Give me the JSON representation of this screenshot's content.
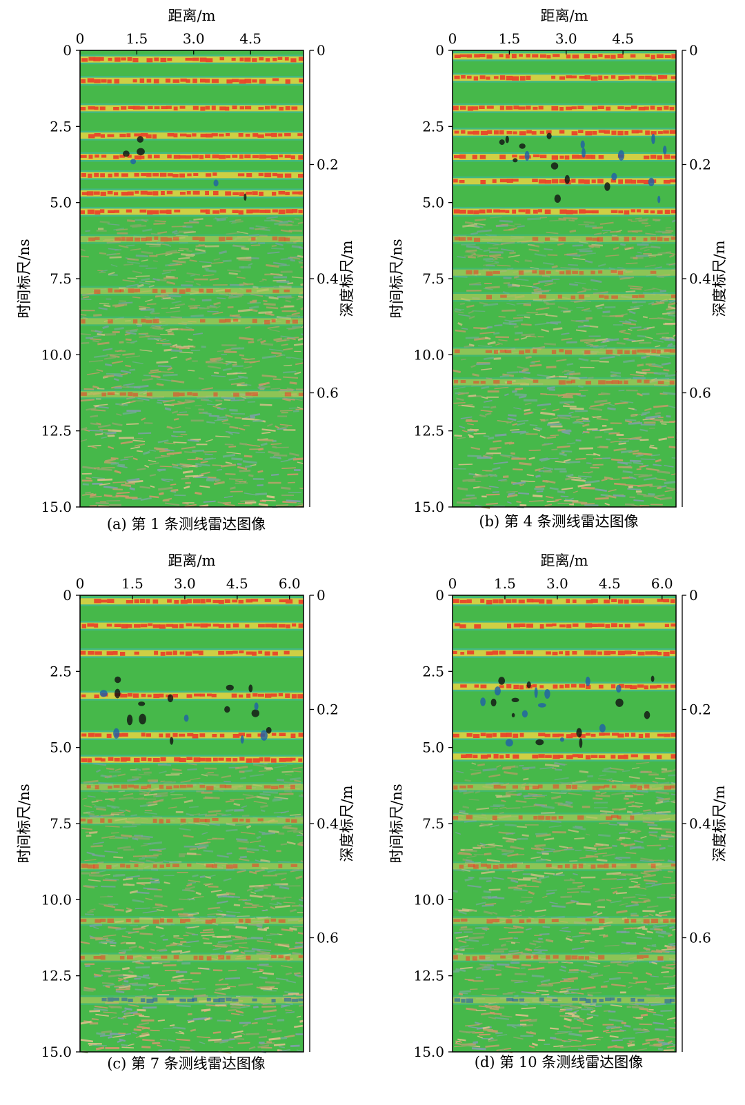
{
  "figure": {
    "panels": [
      {
        "caption_label": "(a)",
        "caption_text": "第 1 条测线雷达图像"
      },
      {
        "caption_label": "(b)",
        "caption_text": "第 4 条测线雷达图像"
      },
      {
        "caption_label": "(c)",
        "caption_text": "第 7 条测线雷达图像"
      },
      {
        "caption_label": "(d)",
        "caption_text": "第 10 条测线雷达图像"
      }
    ]
  },
  "chart_data": [
    {
      "type": "heatmap",
      "title": "(a) 第 1 条测线雷达图像",
      "xlabel": "距离/m",
      "ylabel": "时间标尺/ns",
      "y2label": "深度标尺/m",
      "x_ticks": [
        "0",
        "1.5",
        "3.0",
        "4.5"
      ],
      "y_ticks": [
        "0",
        "2.5",
        "5.0",
        "7.5",
        "10.0",
        "12.5",
        "15.0"
      ],
      "y2_ticks": [
        "0",
        "0.2",
        "0.4",
        "0.6"
      ],
      "xlim": [
        0,
        5.9
      ],
      "ylim": [
        0,
        15
      ],
      "y2lim": [
        0,
        0.8
      ],
      "colors": {
        "green": "#46b84a",
        "red": "#e8452a",
        "yellow": "#e8d23a",
        "cyan": "#3fb8b0",
        "blue": "#1f5fa8"
      },
      "reflectors": [
        {
          "time_ns": 0.3,
          "color": "red"
        },
        {
          "time_ns": 1.0,
          "color": "red"
        },
        {
          "time_ns": 1.9,
          "color": "red"
        },
        {
          "time_ns": 2.8,
          "color": "red"
        },
        {
          "time_ns": 3.5,
          "color": "red"
        },
        {
          "time_ns": 4.1,
          "color": "red"
        },
        {
          "time_ns": 4.7,
          "color": "red"
        },
        {
          "time_ns": 5.3,
          "color": "red"
        },
        {
          "time_ns": 6.2,
          "color": "red"
        },
        {
          "time_ns": 7.9,
          "color": "red"
        },
        {
          "time_ns": 8.9,
          "color": "red"
        },
        {
          "time_ns": 11.3,
          "color": "red"
        }
      ]
    },
    {
      "type": "heatmap",
      "title": "(b) 第 4 条测线雷达图像",
      "xlabel": "距离/m",
      "ylabel": "时间标尺/ns",
      "y2label": "深度标尺/m",
      "x_ticks": [
        "0",
        "1.5",
        "3.0",
        "4.5"
      ],
      "y_ticks": [
        "0",
        "2.5",
        "5.0",
        "7.5",
        "10.0",
        "12.5",
        "15.0"
      ],
      "y2_ticks": [
        "0",
        "0.2",
        "0.4",
        "0.6"
      ],
      "xlim": [
        0,
        5.9
      ],
      "ylim": [
        0,
        15
      ],
      "y2lim": [
        0,
        0.8
      ],
      "colors": {
        "green": "#46b84a",
        "red": "#e8452a",
        "yellow": "#e8d23a",
        "cyan": "#3fb8b0",
        "blue": "#1f5fa8"
      },
      "reflectors": [
        {
          "time_ns": 0.2,
          "color": "red"
        },
        {
          "time_ns": 0.9,
          "color": "red"
        },
        {
          "time_ns": 1.9,
          "color": "red"
        },
        {
          "time_ns": 2.7,
          "color": "red"
        },
        {
          "time_ns": 3.5,
          "color": "red"
        },
        {
          "time_ns": 4.3,
          "color": "red"
        },
        {
          "time_ns": 5.3,
          "color": "red"
        },
        {
          "time_ns": 6.2,
          "color": "red"
        },
        {
          "time_ns": 7.3,
          "color": "red"
        },
        {
          "time_ns": 8.1,
          "color": "red"
        },
        {
          "time_ns": 9.9,
          "color": "red"
        },
        {
          "time_ns": 10.9,
          "color": "red"
        }
      ]
    },
    {
      "type": "heatmap",
      "title": "(c) 第 7 条测线雷达图像",
      "xlabel": "距离/m",
      "ylabel": "时间标尺/ns",
      "y2label": "深度标尺/m",
      "x_ticks": [
        "0",
        "1.5",
        "3.0",
        "4.5",
        "6.0"
      ],
      "y_ticks": [
        "0",
        "2.5",
        "5.0",
        "7.5",
        "10.0",
        "12.5",
        "15.0"
      ],
      "y2_ticks": [
        "0",
        "0.2",
        "0.4",
        "0.6"
      ],
      "xlim": [
        0,
        6.4
      ],
      "ylim": [
        0,
        15
      ],
      "y2lim": [
        0,
        0.8
      ],
      "colors": {
        "green": "#46b84a",
        "red": "#e8452a",
        "yellow": "#e8d23a",
        "cyan": "#3fb8b0",
        "blue": "#1f5fa8"
      },
      "reflectors": [
        {
          "time_ns": 0.2,
          "color": "red"
        },
        {
          "time_ns": 1.0,
          "color": "red"
        },
        {
          "time_ns": 1.9,
          "color": "red"
        },
        {
          "time_ns": 3.3,
          "color": "red"
        },
        {
          "time_ns": 4.6,
          "color": "red"
        },
        {
          "time_ns": 5.4,
          "color": "red"
        },
        {
          "time_ns": 6.3,
          "color": "red"
        },
        {
          "time_ns": 7.4,
          "color": "red"
        },
        {
          "time_ns": 8.9,
          "color": "red"
        },
        {
          "time_ns": 10.7,
          "color": "red"
        },
        {
          "time_ns": 11.9,
          "color": "red"
        },
        {
          "time_ns": 13.3,
          "color": "blue"
        }
      ]
    },
    {
      "type": "heatmap",
      "title": "(d) 第 10 条测线雷达图像",
      "xlabel": "距离/m",
      "ylabel": "时间标尺/ns",
      "y2label": "深度标尺/m",
      "x_ticks": [
        "0",
        "1.5",
        "3.0",
        "4.5",
        "6.0"
      ],
      "y_ticks": [
        "0",
        "2.5",
        "5.0",
        "7.5",
        "10.0",
        "12.5",
        "15.0"
      ],
      "y2_ticks": [
        "0",
        "0.2",
        "0.4",
        "0.6"
      ],
      "xlim": [
        0,
        6.4
      ],
      "ylim": [
        0,
        15
      ],
      "y2lim": [
        0,
        0.8
      ],
      "colors": {
        "green": "#46b84a",
        "red": "#e8452a",
        "yellow": "#e8d23a",
        "cyan": "#3fb8b0",
        "blue": "#1f5fa8"
      },
      "reflectors": [
        {
          "time_ns": 0.2,
          "color": "red"
        },
        {
          "time_ns": 1.0,
          "color": "red"
        },
        {
          "time_ns": 1.9,
          "color": "red"
        },
        {
          "time_ns": 3.0,
          "color": "red"
        },
        {
          "time_ns": 4.6,
          "color": "red"
        },
        {
          "time_ns": 5.3,
          "color": "red"
        },
        {
          "time_ns": 6.3,
          "color": "red"
        },
        {
          "time_ns": 7.3,
          "color": "red"
        },
        {
          "time_ns": 8.9,
          "color": "red"
        },
        {
          "time_ns": 10.7,
          "color": "red"
        },
        {
          "time_ns": 11.9,
          "color": "red"
        },
        {
          "time_ns": 13.3,
          "color": "blue"
        }
      ]
    }
  ]
}
